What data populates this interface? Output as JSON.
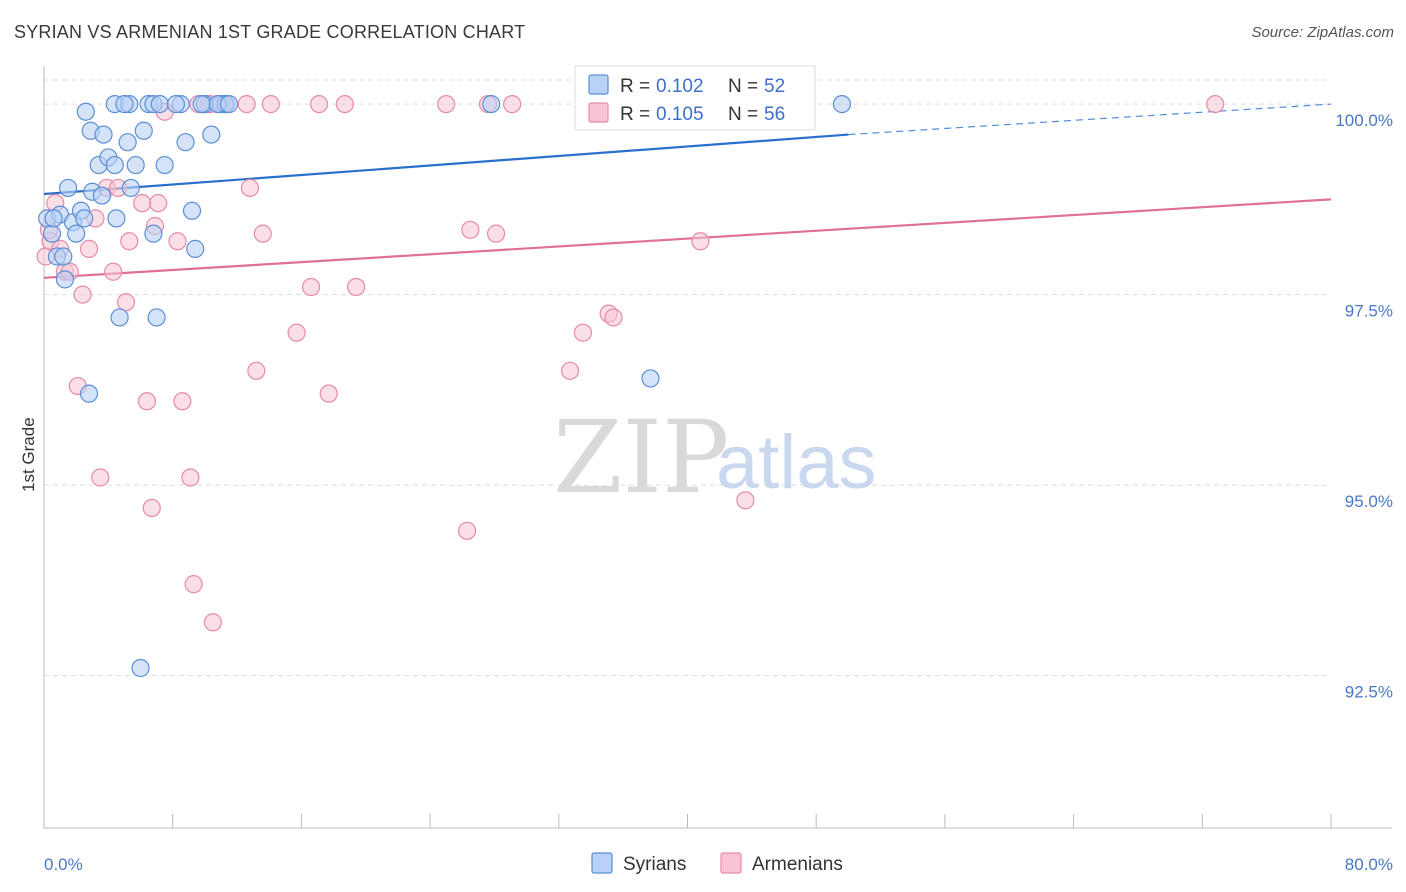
{
  "header": {
    "title": "SYRIAN VS ARMENIAN 1ST GRADE CORRELATION CHART",
    "source": "Source: ZipAtlas.com"
  },
  "watermark": {
    "zip": "ZIP",
    "atlas": "atlas"
  },
  "legend": {
    "syrians": {
      "r_label": "R =",
      "r_value": "0.102",
      "n_label": "N =",
      "n_value": "52"
    },
    "armenians": {
      "r_label": "R =",
      "r_value": "0.105",
      "n_label": "N =",
      "n_value": "56"
    }
  },
  "colors": {
    "syrians_fill": "#b9d1f5",
    "syrians_stroke": "#5b8fd6",
    "syrians_line": "#2a6fcc",
    "armenians_fill": "#f8c4d4",
    "armenians_stroke": "#e68aa8",
    "armenians_line": "#e07099",
    "grid": "#dddddd",
    "tick_text": "#4a78c8"
  },
  "chart_data": {
    "type": "scatter",
    "title": "SYRIAN VS ARMENIAN 1ST GRADE CORRELATION CHART",
    "xlabel": "",
    "ylabel": "1st Grade",
    "xlim": [
      0,
      80
    ],
    "ylim": [
      90.5,
      100.5
    ],
    "x_tick_labels": [
      "0.0%",
      "80.0%"
    ],
    "y_ticks": [
      92.5,
      95.0,
      97.5,
      100.0
    ],
    "y_tick_labels": [
      "92.5%",
      "95.0%",
      "97.5%",
      "100.0%"
    ],
    "grid": true,
    "legend_position": "top-center",
    "series": [
      {
        "name": "Syrians",
        "r": 0.102,
        "n": 52,
        "trend": {
          "x0": 0,
          "y0": 98.82,
          "x1": 50,
          "y1": 99.6,
          "dashed_to_x": 80,
          "dashed_to_y": 100.0
        },
        "points": [
          [
            0.2,
            98.5
          ],
          [
            0.5,
            98.3
          ],
          [
            0.8,
            98.0
          ],
          [
            1.0,
            98.55
          ],
          [
            1.3,
            97.7
          ],
          [
            1.5,
            98.9
          ],
          [
            1.8,
            98.45
          ],
          [
            2.0,
            98.3
          ],
          [
            2.3,
            98.6
          ],
          [
            2.6,
            99.9
          ],
          [
            2.9,
            99.65
          ],
          [
            3.0,
            98.85
          ],
          [
            3.4,
            99.2
          ],
          [
            3.6,
            98.8
          ],
          [
            4.0,
            99.3
          ],
          [
            4.4,
            99.2
          ],
          [
            4.5,
            98.5
          ],
          [
            4.7,
            97.2
          ],
          [
            5.2,
            99.5
          ],
          [
            5.4,
            98.9
          ],
          [
            5.7,
            99.2
          ],
          [
            6.2,
            99.65
          ],
          [
            6.5,
            100.0
          ],
          [
            6.8,
            100.0
          ],
          [
            7.2,
            100.0
          ],
          [
            7.5,
            99.2
          ],
          [
            8.5,
            100.0
          ],
          [
            8.8,
            99.5
          ],
          [
            9.2,
            98.6
          ],
          [
            9.4,
            98.1
          ],
          [
            10.0,
            100.0
          ],
          [
            10.4,
            99.6
          ],
          [
            11.0,
            100.0
          ],
          [
            11.3,
            100.0
          ],
          [
            4.4,
            100.0
          ],
          [
            5.3,
            100.0
          ],
          [
            6.0,
            92.6
          ],
          [
            7.0,
            97.2
          ],
          [
            2.8,
            96.2
          ],
          [
            37.7,
            96.4
          ],
          [
            49.6,
            100.0
          ],
          [
            27.8,
            100.0
          ],
          [
            0.6,
            98.5
          ],
          [
            1.2,
            98.0
          ],
          [
            2.5,
            98.5
          ],
          [
            3.7,
            99.6
          ],
          [
            5.0,
            100.0
          ],
          [
            6.8,
            98.3
          ],
          [
            8.2,
            100.0
          ],
          [
            9.8,
            100.0
          ],
          [
            10.8,
            100.0
          ],
          [
            11.5,
            100.0
          ]
        ]
      },
      {
        "name": "Armenians",
        "r": 0.105,
        "n": 56,
        "trend": {
          "x0": 0,
          "y0": 97.72,
          "x1": 80,
          "y1": 98.75
        },
        "points": [
          [
            0.1,
            98.0
          ],
          [
            0.4,
            98.2
          ],
          [
            0.7,
            98.7
          ],
          [
            1.0,
            98.1
          ],
          [
            1.3,
            97.8
          ],
          [
            1.6,
            97.8
          ],
          [
            2.1,
            96.3
          ],
          [
            2.4,
            97.5
          ],
          [
            2.8,
            98.1
          ],
          [
            3.2,
            98.5
          ],
          [
            3.5,
            95.1
          ],
          [
            3.9,
            98.9
          ],
          [
            4.3,
            97.8
          ],
          [
            4.6,
            98.9
          ],
          [
            5.1,
            97.4
          ],
          [
            5.3,
            98.2
          ],
          [
            6.1,
            98.7
          ],
          [
            6.4,
            96.1
          ],
          [
            6.7,
            94.7
          ],
          [
            6.9,
            98.4
          ],
          [
            7.1,
            98.7
          ],
          [
            7.5,
            99.9
          ],
          [
            8.3,
            98.2
          ],
          [
            8.6,
            96.1
          ],
          [
            9.1,
            95.1
          ],
          [
            9.3,
            93.7
          ],
          [
            10.0,
            100.0
          ],
          [
            10.5,
            93.2
          ],
          [
            11.2,
            100.0
          ],
          [
            12.6,
            100.0
          ],
          [
            12.8,
            98.9
          ],
          [
            13.2,
            96.5
          ],
          [
            13.6,
            98.3
          ],
          [
            14.1,
            100.0
          ],
          [
            15.7,
            97.0
          ],
          [
            16.6,
            97.6
          ],
          [
            17.1,
            100.0
          ],
          [
            17.7,
            96.2
          ],
          [
            18.7,
            100.0
          ],
          [
            19.4,
            97.6
          ],
          [
            25.0,
            100.0
          ],
          [
            26.3,
            94.4
          ],
          [
            26.5,
            98.35
          ],
          [
            27.6,
            100.0
          ],
          [
            28.1,
            98.3
          ],
          [
            29.1,
            100.0
          ],
          [
            32.7,
            96.5
          ],
          [
            33.5,
            97.0
          ],
          [
            35.1,
            97.25
          ],
          [
            35.4,
            97.2
          ],
          [
            40.8,
            98.2
          ],
          [
            43.6,
            94.8
          ],
          [
            72.8,
            100.0
          ],
          [
            9.6,
            100.0
          ],
          [
            10.3,
            100.0
          ],
          [
            0.3,
            98.35
          ]
        ]
      }
    ]
  },
  "bottom_legend": {
    "syrians": "Syrians",
    "armenians": "Armenians"
  }
}
